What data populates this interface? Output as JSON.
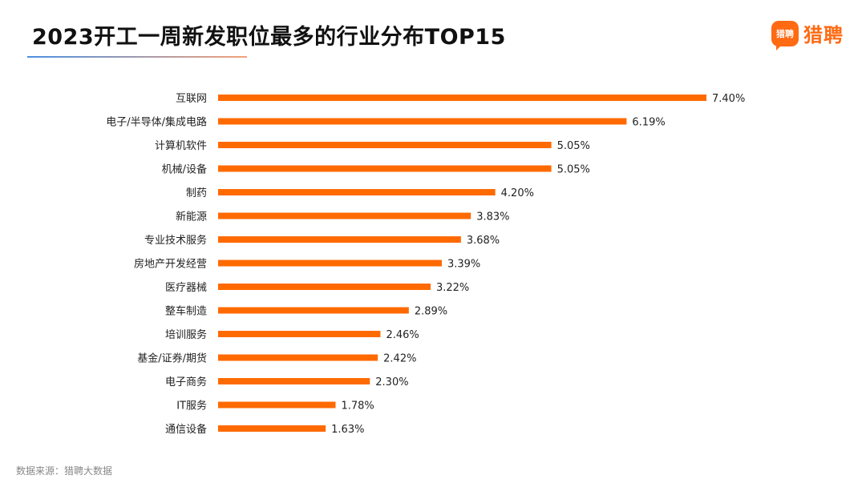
{
  "title": "2023开工一周新发职位最多的行业分布TOP15",
  "brand": {
    "icon_text": "猎聘",
    "name": "猎聘"
  },
  "source": "数据来源：猎聘大数据",
  "colors": {
    "bar": "#ff6a00",
    "brand": "#ff6a13"
  },
  "chart_data": {
    "type": "bar",
    "orientation": "horizontal",
    "title": "2023开工一周新发职位最多的行业分布TOP15",
    "categories": [
      "互联网",
      "电子/半导体/集成电路",
      "计算机软件",
      "机械/设备",
      "制药",
      "新能源",
      "专业技术服务",
      "房地产开发经营",
      "医疗器械",
      "整车制造",
      "培训服务",
      "基金/证券/期货",
      "电子商务",
      "IT服务",
      "通信设备"
    ],
    "values": [
      7.4,
      6.19,
      5.05,
      5.05,
      4.2,
      3.83,
      3.68,
      3.39,
      3.22,
      2.89,
      2.46,
      2.42,
      2.3,
      1.78,
      1.63
    ],
    "labels": [
      "7.40%",
      "6.19%",
      "5.05%",
      "5.05%",
      "4.20%",
      "3.83%",
      "3.68%",
      "3.39%",
      "3.22%",
      "2.89%",
      "2.46%",
      "2.42%",
      "2.30%",
      "1.78%",
      "1.63%"
    ],
    "unit": "%",
    "xlim": [
      0,
      7.4
    ],
    "grid": false,
    "legend": "none"
  }
}
